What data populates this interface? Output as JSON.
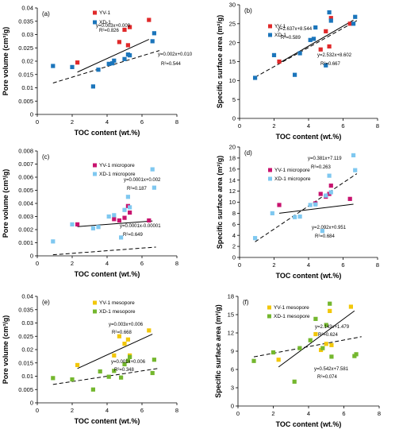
{
  "colors": {
    "axis": "#000000",
    "yv1_fig1": "#e0292a",
    "xd1_fig1": "#1b75bb",
    "yv1_micro": "#c8136f",
    "xd1_micro": "#7fc8f0",
    "yv1_meso": "#f2c70a",
    "xd1_meso": "#74b72e",
    "fit_line": "#000000"
  },
  "chart_data": [
    {
      "type": "scatter",
      "label": "(a)",
      "xlabel": "TOC content (wt.%)",
      "ylabel": "Pore volume (cm³/g)",
      "xlim": [
        0,
        8
      ],
      "ylim": [
        0,
        0.04
      ],
      "xticks": [
        "0",
        "2",
        "4",
        "6",
        "8"
      ],
      "yticks": [
        "0",
        "0.005",
        "0.01",
        "0.015",
        "0.02",
        "0.025",
        "0.03",
        "0.035",
        "0.04"
      ],
      "series": [
        {
          "name": "YV-1",
          "color_key": "yv1_fig1",
          "x": [
            2.3,
            4.7,
            5.0,
            5.2,
            5.3,
            6.4
          ],
          "y": [
            0.0195,
            0.0272,
            0.0318,
            0.026,
            0.0328,
            0.0355
          ],
          "fit": {
            "slope": 0.003,
            "intercept": 0.009,
            "xrange": [
              2.3,
              6.4
            ],
            "style": "solid"
          },
          "equation": "y=0.003x+0.009",
          "r2": "R²=0.826"
        },
        {
          "name": "XD-1",
          "color_key": "xd1_fig1",
          "x": [
            0.9,
            2.0,
            3.2,
            3.5,
            4.1,
            4.3,
            4.4,
            5.0,
            5.2,
            5.3,
            6.6,
            6.7
          ],
          "y": [
            0.0182,
            0.0178,
            0.0105,
            0.0168,
            0.019,
            0.0192,
            0.0202,
            0.0208,
            0.0225,
            0.0222,
            0.0275,
            0.0305
          ],
          "fit": {
            "slope": 0.002,
            "intercept": 0.01,
            "xrange": [
              0.9,
              7.0
            ],
            "style": "dashed"
          },
          "equation": "y=0.002x+0.010",
          "r2": "R²=0.544"
        }
      ]
    },
    {
      "type": "scatter",
      "label": "(b)",
      "xlabel": "TOC content (wt.%)",
      "ylabel": "Specific surface area (m²/g)",
      "xlim": [
        0,
        8
      ],
      "ylim": [
        0,
        30
      ],
      "xticks": [
        "0",
        "2",
        "4",
        "6",
        "8"
      ],
      "yticks": [
        "0",
        "5",
        "10",
        "15",
        "20",
        "25",
        "30"
      ],
      "series": [
        {
          "name": "YV-1",
          "color_key": "yv1_fig1",
          "x": [
            2.3,
            4.7,
            5.0,
            5.2,
            5.3,
            6.4
          ],
          "y": [
            15.0,
            18.2,
            23.0,
            19.0,
            26.5,
            25.0
          ],
          "fit": {
            "slope": 2.637,
            "intercept": 8.544,
            "xrange": [
              2.3,
              6.6
            ],
            "style": "solid"
          },
          "equation": "y=2.637x+8.544",
          "r2": "R²=0.589"
        },
        {
          "name": "XD-1",
          "color_key": "xd1_fig1",
          "x": [
            0.9,
            2.0,
            3.2,
            3.5,
            4.1,
            4.3,
            4.4,
            5.0,
            5.2,
            5.3,
            6.6,
            6.7
          ],
          "y": [
            10.7,
            16.7,
            11.5,
            17.2,
            20.7,
            21.0,
            24.0,
            14.0,
            28.0,
            25.8,
            25.0,
            26.8
          ],
          "fit": {
            "slope": 2.532,
            "intercept": 8.602,
            "xrange": [
              0.9,
              6.8
            ],
            "style": "dashed"
          },
          "equation": "y=2.532x+8.602",
          "r2": "R²=0.667"
        }
      ]
    },
    {
      "type": "scatter",
      "label": "(c)",
      "xlabel": "TOC content (wt.%)",
      "ylabel": "Pore volume (cm³/g)",
      "xlim": [
        0,
        8
      ],
      "ylim": [
        0,
        0.008
      ],
      "xticks": [
        "0",
        "2",
        "4",
        "6",
        "8"
      ],
      "yticks": [
        "0",
        "0.001",
        "0.002",
        "0.003",
        "0.004",
        "0.005",
        "0.006",
        "0.007",
        "0.008"
      ],
      "series": [
        {
          "name": "YV-1 micropore",
          "color_key": "yv1_micro",
          "x": [
            2.3,
            4.4,
            4.7,
            5.0,
            5.2,
            5.3,
            6.4
          ],
          "y": [
            0.0024,
            0.0028,
            0.0027,
            0.0029,
            0.0038,
            0.0033,
            0.0027
          ],
          "fit": {
            "slope": 0.0001,
            "intercept": 0.002,
            "xrange": [
              2.3,
              6.6
            ],
            "style": "solid"
          },
          "equation": "y=0.0001x+0.002",
          "r2": "R²=0.187"
        },
        {
          "name": "XD-1 micropore",
          "color_key": "xd1_micro",
          "x": [
            0.9,
            2.0,
            3.2,
            3.5,
            4.1,
            4.4,
            4.8,
            5.0,
            5.2,
            5.3,
            6.6,
            6.7
          ],
          "y": [
            0.0011,
            0.0024,
            0.0021,
            0.0022,
            0.003,
            0.0031,
            0.0014,
            0.0035,
            0.0045,
            0.0037,
            0.0066,
            0.0052
          ],
          "fit": {
            "slope": 0.0001,
            "intercept": -1e-05,
            "xrange": [
              0.9,
              6.8
            ],
            "style": "dashed"
          },
          "equation": "y=0.0001x-0.00001",
          "r2": "R²=0.649"
        }
      ]
    },
    {
      "type": "scatter",
      "label": "(d)",
      "xlabel": "TOC content (wt.%)",
      "ylabel": "Specific surface area (m²/g)",
      "xlim": [
        0,
        8
      ],
      "ylim": [
        0,
        20
      ],
      "xticks": [
        "0",
        "2",
        "4",
        "6",
        "8"
      ],
      "yticks": [
        "0",
        "2",
        "4",
        "6",
        "8",
        "10",
        "12",
        "14",
        "16",
        "18",
        "20"
      ],
      "series": [
        {
          "name": "YV-1 micropore",
          "color_key": "yv1_micro",
          "x": [
            2.3,
            4.4,
            4.7,
            5.0,
            5.2,
            5.3,
            6.4
          ],
          "y": [
            9.5,
            9.8,
            11.5,
            11.0,
            11.5,
            13.0,
            10.6
          ],
          "fit": {
            "slope": 0.381,
            "intercept": 7.119,
            "xrange": [
              2.3,
              6.6
            ],
            "style": "solid"
          },
          "equation": "y=0.381x+7.119",
          "r2": "R²=0.263"
        },
        {
          "name": "XD-1 micropore",
          "color_key": "xd1_micro",
          "x": [
            0.9,
            1.9,
            3.2,
            3.5,
            4.1,
            4.4,
            4.8,
            5.0,
            5.2,
            5.3,
            6.6,
            6.7
          ],
          "y": [
            3.5,
            8.0,
            7.3,
            7.4,
            9.5,
            9.6,
            4.8,
            11.2,
            14.8,
            11.8,
            18.5,
            15.8
          ],
          "fit": {
            "slope": 2.092,
            "intercept": 0.951,
            "xrange": [
              0.9,
              6.8
            ],
            "style": "dashed"
          },
          "equation": "y=2.092x+0.951",
          "r2": "R²=0.684"
        }
      ]
    },
    {
      "type": "scatter",
      "label": "(e)",
      "xlabel": "TOC content (wt.%)",
      "ylabel": "Pore volume (cm³/g)",
      "xlim": [
        0,
        8
      ],
      "ylim": [
        0,
        0.04
      ],
      "xticks": [
        "0",
        "2",
        "4",
        "6",
        "8"
      ],
      "yticks": [
        "0",
        "0.005",
        "0.01",
        "0.015",
        "0.02",
        "0.025",
        "0.03",
        "0.035",
        "0.04"
      ],
      "series": [
        {
          "name": "YV-1 mesopore",
          "color_key": "yv1_meso",
          "x": [
            2.3,
            4.4,
            4.7,
            5.0,
            5.2,
            5.3,
            6.4
          ],
          "y": [
            0.0142,
            0.0178,
            0.025,
            0.0222,
            0.0238,
            0.0178,
            0.0272
          ],
          "fit": {
            "slope": 0.003,
            "intercept": 0.006,
            "xrange": [
              2.3,
              6.6
            ],
            "style": "solid"
          },
          "equation": "y=0.003x+0.006",
          "r2": "R²=0.668"
        },
        {
          "name": "XD-1 mesopore",
          "color_key": "xd1_meso",
          "x": [
            0.9,
            2.0,
            3.2,
            3.6,
            4.1,
            4.4,
            4.8,
            5.0,
            5.2,
            5.3,
            6.6,
            6.7
          ],
          "y": [
            0.0093,
            0.0088,
            0.005,
            0.0118,
            0.0098,
            0.012,
            0.0095,
            0.0145,
            0.0158,
            0.0172,
            0.0112,
            0.0162
          ],
          "fit": {
            "slope": 0.001,
            "intercept": 0.006,
            "xrange": [
              0.9,
              7.0
            ],
            "style": "dashed"
          },
          "equation": "y=0.001x+0.006",
          "r2": "R²=0.348"
        }
      ]
    },
    {
      "type": "scatter",
      "label": "(f)",
      "xlabel": "TOC content (wt.%)",
      "ylabel": "Specific surface area (m²/g)",
      "xlim": [
        0,
        8
      ],
      "ylim": [
        0,
        18
      ],
      "xticks": [
        "0",
        "2",
        "4",
        "6",
        "8"
      ],
      "yticks": [
        "0",
        "3",
        "6",
        "9",
        "12",
        "15",
        "18"
      ],
      "series": [
        {
          "name": "YV-1 mesopore",
          "color_key": "yv1_meso",
          "x": [
            2.3,
            4.4,
            4.7,
            5.0,
            5.2,
            5.3,
            6.4
          ],
          "y": [
            7.6,
            11.8,
            9.2,
            10.2,
            15.6,
            10.0,
            16.3
          ],
          "fit": {
            "slope": 2.143,
            "intercept": 1.479,
            "xrange": [
              2.3,
              6.6
            ],
            "style": "solid"
          },
          "equation": "y=2.143x+1.479",
          "r2": "R²=0.624"
        },
        {
          "name": "XD-1 mesopore",
          "color_key": "xd1_meso",
          "x": [
            0.9,
            2.0,
            3.2,
            3.5,
            4.1,
            4.4,
            4.8,
            5.0,
            5.2,
            5.3,
            6.6,
            6.7
          ],
          "y": [
            7.4,
            8.8,
            4.0,
            9.5,
            10.8,
            14.3,
            9.5,
            13.3,
            16.8,
            8.1,
            8.2,
            8.5
          ],
          "fit": {
            "slope": 0.542,
            "intercept": 7.581,
            "xrange": [
              0.9,
              7.0
            ],
            "style": "dashed"
          },
          "equation": "y=0.542x+7.581",
          "r2": "R²=0.074"
        }
      ]
    }
  ]
}
